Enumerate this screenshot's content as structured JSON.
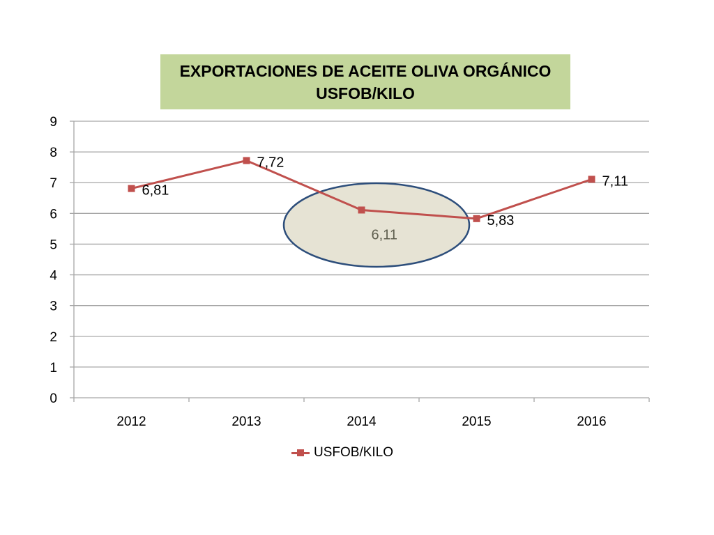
{
  "title": {
    "line1": "EXPORTACIONES DE ACEITE OLIVA ORGÁNICO",
    "line2": "USFOB/KILO"
  },
  "colors": {
    "title_background": "#c3d69b",
    "series": "#c0504d",
    "gridline": "#a6a6a6",
    "highlight_fill": "#e6e3d4",
    "highlight_stroke": "#2d4e7b"
  },
  "chart_data": {
    "type": "line",
    "title": "EXPORTACIONES DE ACEITE OLIVA ORGÁNICO USFOB/KILO",
    "xlabel": "",
    "ylabel": "",
    "categories": [
      "2012",
      "2013",
      "2014",
      "2015",
      "2016"
    ],
    "ylim": [
      0,
      9
    ],
    "yticks": [
      "0",
      "1",
      "2",
      "3",
      "4",
      "5",
      "6",
      "7",
      "8",
      "9"
    ],
    "grid": true,
    "legend_position": "bottom",
    "series": [
      {
        "name": "USFOB/KILO",
        "values": [
          6.81,
          7.72,
          6.11,
          5.83,
          7.11
        ],
        "labels": [
          "6,81",
          "7,72",
          "6,11",
          "5,83",
          "7,11"
        ]
      }
    ],
    "highlighted_category": "2014"
  }
}
